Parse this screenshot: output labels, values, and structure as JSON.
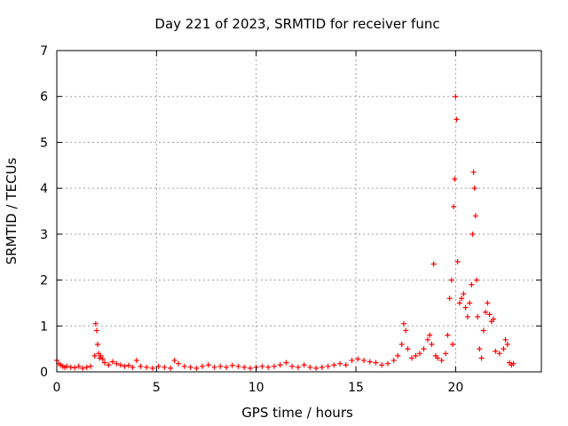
{
  "chart_data": {
    "type": "scatter",
    "title": "Day 221 of 2023, SRMTID for receiver func",
    "xlabel": "GPS time / hours",
    "ylabel": "SRMTID / TECUs",
    "xlim": [
      0,
      24.3
    ],
    "ylim": [
      0,
      7
    ],
    "x_ticks": [
      0,
      5,
      10,
      15,
      20
    ],
    "y_ticks": [
      0,
      1,
      2,
      3,
      4,
      5,
      6,
      7
    ],
    "grid": true,
    "marker": "+",
    "color": "#ff0000",
    "series": [
      {
        "name": "SRMTID",
        "x": [
          0.0,
          0.1,
          0.2,
          0.3,
          0.4,
          0.5,
          0.7,
          0.9,
          1.1,
          1.3,
          1.5,
          1.7,
          1.9,
          1.95,
          2.0,
          2.05,
          2.1,
          2.15,
          2.2,
          2.3,
          2.4,
          2.6,
          2.8,
          3.0,
          3.2,
          3.4,
          3.6,
          3.8,
          4.0,
          4.2,
          4.5,
          4.8,
          5.1,
          5.4,
          5.7,
          5.9,
          6.1,
          6.4,
          6.7,
          7.0,
          7.3,
          7.6,
          7.9,
          8.2,
          8.5,
          8.8,
          9.1,
          9.4,
          9.7,
          10.0,
          10.3,
          10.6,
          10.9,
          11.2,
          11.5,
          11.8,
          12.1,
          12.4,
          12.7,
          13.0,
          13.3,
          13.6,
          13.9,
          14.2,
          14.5,
          14.8,
          15.1,
          15.4,
          15.7,
          16.0,
          16.3,
          16.6,
          16.9,
          17.1,
          17.3,
          17.4,
          17.5,
          17.6,
          17.8,
          18.0,
          18.2,
          18.4,
          18.6,
          18.7,
          18.8,
          18.9,
          19.0,
          19.1,
          19.3,
          19.5,
          19.6,
          19.7,
          19.8,
          19.85,
          19.9,
          19.95,
          20.0,
          20.05,
          20.1,
          20.2,
          20.3,
          20.4,
          20.5,
          20.6,
          20.7,
          20.8,
          20.85,
          20.9,
          20.95,
          21.0,
          21.05,
          21.1,
          21.2,
          21.3,
          21.4,
          21.5,
          21.6,
          21.7,
          21.8,
          21.9,
          22.0,
          22.2,
          22.4,
          22.5,
          22.6,
          22.7,
          22.8,
          22.9
        ],
        "y": [
          0.25,
          0.18,
          0.15,
          0.12,
          0.1,
          0.12,
          0.1,
          0.09,
          0.12,
          0.08,
          0.1,
          0.12,
          0.35,
          1.05,
          0.9,
          0.6,
          0.4,
          0.3,
          0.35,
          0.28,
          0.2,
          0.15,
          0.22,
          0.18,
          0.15,
          0.12,
          0.14,
          0.1,
          0.25,
          0.12,
          0.1,
          0.08,
          0.12,
          0.1,
          0.08,
          0.25,
          0.18,
          0.12,
          0.1,
          0.08,
          0.12,
          0.15,
          0.1,
          0.12,
          0.1,
          0.14,
          0.12,
          0.1,
          0.08,
          0.1,
          0.12,
          0.1,
          0.12,
          0.15,
          0.2,
          0.12,
          0.1,
          0.15,
          0.1,
          0.08,
          0.1,
          0.12,
          0.15,
          0.18,
          0.15,
          0.25,
          0.28,
          0.25,
          0.22,
          0.2,
          0.15,
          0.18,
          0.25,
          0.35,
          0.6,
          1.05,
          0.9,
          0.5,
          0.3,
          0.35,
          0.4,
          0.5,
          0.7,
          0.8,
          0.6,
          2.35,
          0.35,
          0.3,
          0.25,
          0.4,
          0.8,
          1.6,
          2.0,
          0.6,
          3.6,
          4.2,
          6.0,
          5.5,
          2.4,
          1.5,
          1.6,
          1.7,
          1.4,
          1.2,
          1.5,
          1.9,
          3.0,
          4.35,
          4.0,
          3.4,
          2.0,
          1.2,
          0.5,
          0.3,
          0.9,
          1.3,
          1.5,
          1.25,
          1.1,
          1.15,
          0.45,
          0.4,
          0.5,
          0.7,
          0.6,
          0.2,
          0.15,
          0.18
        ]
      }
    ]
  }
}
